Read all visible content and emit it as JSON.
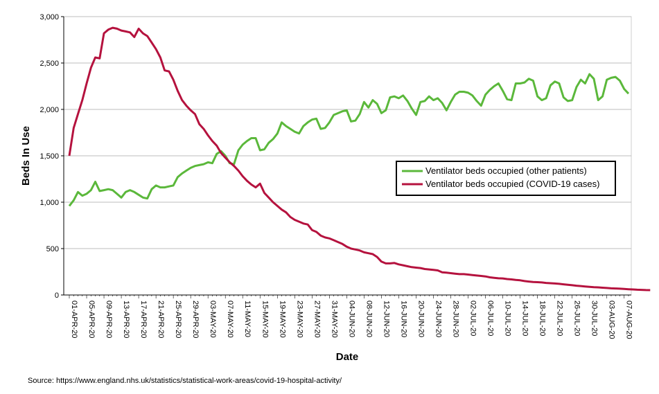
{
  "chart_data": {
    "type": "line",
    "title": "",
    "xlabel": "Date",
    "ylabel": "Beds In Use",
    "ylim": [
      0,
      3000
    ],
    "yticks": [
      "0",
      "500",
      "1,000",
      "1,500",
      "2,000",
      "2,500",
      "3,000"
    ],
    "x_start": "01-APR-20",
    "x_tick_labels": [
      "01-APR-20",
      "05-APR-20",
      "09-APR-20",
      "13-APR-20",
      "17-APR-20",
      "21-APR-20",
      "25-APR-20",
      "29-APR-20",
      "03-MAY-20",
      "07-MAY-20",
      "11-MAY-20",
      "15-MAY-20",
      "19-MAY-20",
      "23-MAY-20",
      "27-MAY-20",
      "31-MAY-20",
      "04-JUN-20",
      "08-JUN-20",
      "12-JUN-20",
      "16-JUN-20",
      "20-JUN-20",
      "24-JUN-20",
      "28-JUN-20",
      "02-JUL-20",
      "06-JUL-20",
      "10-JUL-20",
      "14-JUL-20",
      "18-JUL-20",
      "22-JUL-20",
      "26-JUL-20",
      "30-JUL-20",
      "03-AUG-20",
      "07-AUG-20"
    ],
    "grid": "horizontal",
    "legend_position": "center-right",
    "series": [
      {
        "name": "Ventilator beds occupied (other patients)",
        "color": "#5bb83b",
        "values": [
          960,
          1020,
          1110,
          1070,
          1090,
          1130,
          1220,
          1120,
          1130,
          1140,
          1130,
          1090,
          1050,
          1110,
          1130,
          1110,
          1080,
          1050,
          1040,
          1140,
          1180,
          1160,
          1160,
          1170,
          1180,
          1270,
          1310,
          1340,
          1370,
          1390,
          1400,
          1410,
          1430,
          1420,
          1520,
          1550,
          1500,
          1420,
          1410,
          1560,
          1620,
          1660,
          1690,
          1690,
          1560,
          1570,
          1640,
          1680,
          1740,
          1860,
          1820,
          1790,
          1760,
          1740,
          1820,
          1860,
          1890,
          1900,
          1790,
          1800,
          1860,
          1940,
          1960,
          1980,
          1990,
          1870,
          1880,
          1950,
          2080,
          2020,
          2100,
          2060,
          1960,
          1990,
          2130,
          2140,
          2120,
          2150,
          2090,
          2010,
          1940,
          2080,
          2090,
          2140,
          2100,
          2120,
          2070,
          1990,
          2080,
          2160,
          2190,
          2190,
          2180,
          2150,
          2090,
          2040,
          2160,
          2210,
          2250,
          2280,
          2200,
          2110,
          2100,
          2280,
          2280,
          2290,
          2330,
          2310,
          2140,
          2100,
          2120,
          2260,
          2300,
          2280,
          2130,
          2090,
          2100,
          2240,
          2320,
          2280,
          2380,
          2330,
          2100,
          2140,
          2320,
          2340,
          2350,
          2310,
          2220,
          2170
        ]
      },
      {
        "name": "Ventilator beds occupied (COVID-19 cases)",
        "color": "#b5123e",
        "values": [
          1500,
          1800,
          1950,
          2100,
          2280,
          2450,
          2560,
          2550,
          2820,
          2860,
          2880,
          2870,
          2850,
          2840,
          2830,
          2780,
          2870,
          2820,
          2790,
          2720,
          2650,
          2560,
          2420,
          2410,
          2320,
          2200,
          2100,
          2040,
          1990,
          1950,
          1840,
          1790,
          1720,
          1660,
          1610,
          1530,
          1480,
          1430,
          1390,
          1340,
          1280,
          1230,
          1190,
          1160,
          1200,
          1100,
          1050,
          1000,
          960,
          920,
          890,
          840,
          810,
          790,
          770,
          760,
          700,
          680,
          640,
          620,
          610,
          590,
          570,
          550,
          520,
          500,
          490,
          480,
          460,
          450,
          440,
          410,
          360,
          340,
          340,
          345,
          330,
          320,
          310,
          300,
          295,
          290,
          280,
          275,
          270,
          265,
          245,
          240,
          235,
          230,
          225,
          225,
          220,
          215,
          210,
          205,
          200,
          190,
          185,
          180,
          178,
          172,
          168,
          162,
          158,
          150,
          145,
          140,
          138,
          135,
          130,
          127,
          124,
          120,
          115,
          110,
          105,
          100,
          96,
          92,
          88,
          84,
          82,
          78,
          75,
          72,
          70,
          68,
          65,
          62,
          60,
          57,
          55,
          53,
          52
        ]
      }
    ]
  },
  "source_note": "Source: https://www.england.nhs.uk/statistics/statistical-work-areas/covid-19-hospital-activity/"
}
